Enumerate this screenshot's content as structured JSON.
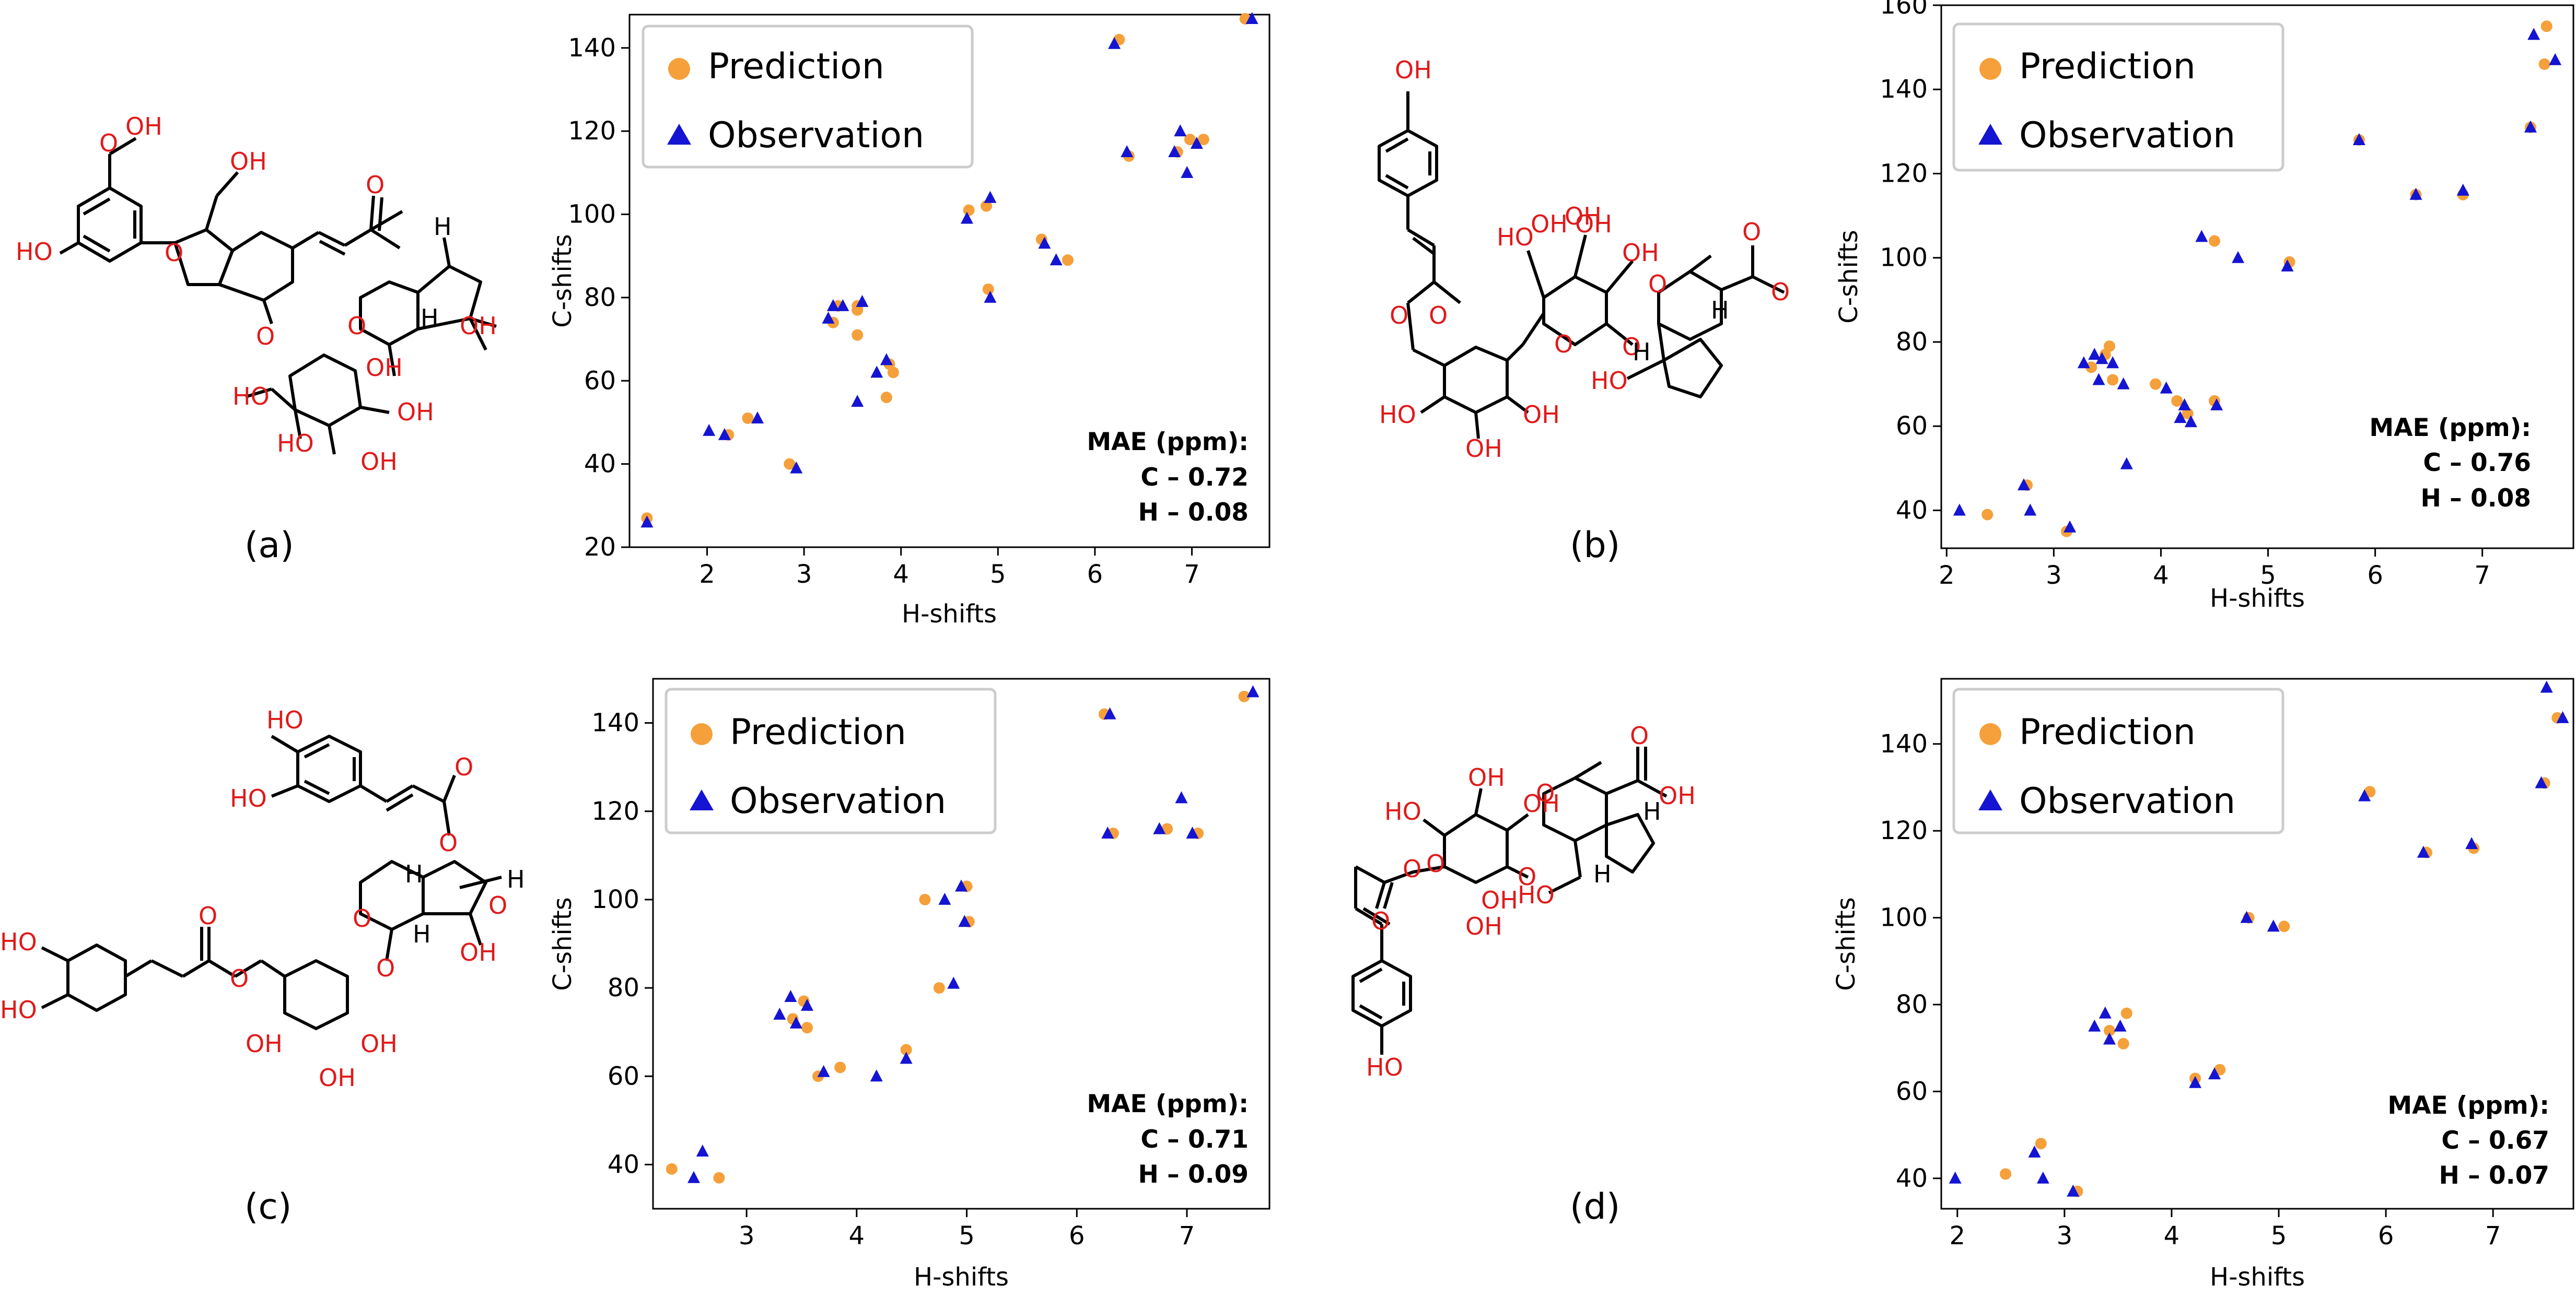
{
  "legend": {
    "prediction": "Prediction",
    "observation": "Observation"
  },
  "colors": {
    "prediction": "#f5a03a",
    "observation": "#1414d2",
    "frame": "#000000",
    "legend_border": "#cccccc"
  },
  "panels": [
    {
      "id": "a",
      "label": "(a)",
      "atoms": [
        "OH",
        "HO",
        "O",
        "O",
        "OH",
        "O",
        "O",
        "H",
        "H",
        "OH",
        "O",
        "HO",
        "HO",
        "OH",
        "OH",
        "OH"
      ]
    },
    {
      "id": "b",
      "label": "(b)",
      "atoms": [
        "OH",
        "O",
        "O",
        "HO",
        "OH",
        "OH",
        "O",
        "O",
        "O",
        "O",
        "O",
        "H",
        "H",
        "HO",
        "HO",
        "OH",
        "OH",
        "OH",
        "OH"
      ]
    },
    {
      "id": "c",
      "label": "(c)",
      "atoms": [
        "HO",
        "HO",
        "O",
        "O",
        "H",
        "H",
        "O",
        "H",
        "HO",
        "HO",
        "O",
        "O",
        "O",
        "O",
        "OH",
        "OH",
        "OH",
        "OH"
      ]
    },
    {
      "id": "d",
      "label": "(d)",
      "atoms": [
        "HO",
        "OH",
        "O",
        "O",
        "OH",
        "O",
        "O",
        "HO",
        "H",
        "H",
        "HO",
        "OH",
        "OH",
        "O",
        "O",
        "OH"
      ]
    }
  ],
  "chart_data": [
    {
      "type": "scatter",
      "xlabel": "H-shifts",
      "ylabel": "C-shifts",
      "xlim": [
        1.2,
        7.8
      ],
      "ylim": [
        20,
        148
      ],
      "xticks": [
        2,
        3,
        4,
        5,
        6,
        7
      ],
      "yticks": [
        20,
        40,
        60,
        80,
        100,
        120,
        140
      ],
      "annotation": [
        "MAE (ppm):",
        "C – 0.72",
        "H – 0.08"
      ],
      "series": [
        {
          "name": "Prediction",
          "marker": "circle",
          "x": [
            1.38,
            2.22,
            2.42,
            2.85,
            3.3,
            3.35,
            3.55,
            3.55,
            3.55,
            3.85,
            3.88,
            3.92,
            4.7,
            4.88,
            4.9,
            5.45,
            5.72,
            6.25,
            6.35,
            6.85,
            6.98,
            7.12,
            7.55
          ],
          "y": [
            27,
            47,
            51,
            40,
            74,
            78,
            78,
            77,
            71,
            56,
            64,
            62,
            101,
            102,
            82,
            94,
            89,
            142,
            114,
            115,
            118,
            118,
            147
          ]
        },
        {
          "name": "Observation",
          "marker": "triangle",
          "x": [
            1.38,
            2.02,
            2.18,
            2.52,
            2.92,
            3.25,
            3.3,
            3.4,
            3.55,
            3.6,
            3.75,
            3.85,
            4.68,
            4.92,
            4.92,
            5.48,
            5.6,
            6.2,
            6.33,
            6.82,
            6.88,
            6.95,
            7.05,
            7.62
          ],
          "y": [
            26,
            48,
            47,
            51,
            39,
            75,
            78,
            78,
            55,
            79,
            62,
            65,
            99,
            104,
            80,
            93,
            89,
            141,
            115,
            115,
            120,
            110,
            117,
            147
          ]
        }
      ]
    },
    {
      "type": "scatter",
      "xlabel": "H-shifts",
      "ylabel": "C-shifts",
      "xlim": [
        1.95,
        7.85
      ],
      "ylim": [
        31,
        160
      ],
      "xticks": [
        2,
        3,
        4,
        5,
        6,
        7
      ],
      "yticks": [
        40,
        60,
        80,
        100,
        120,
        140,
        160
      ],
      "annotation": [
        "MAE (ppm):",
        "C – 0.76",
        "H – 0.08"
      ],
      "series": [
        {
          "name": "Prediction",
          "marker": "circle",
          "x": [
            2.38,
            2.75,
            3.12,
            3.35,
            3.48,
            3.52,
            3.55,
            3.95,
            4.15,
            4.25,
            4.5,
            4.5,
            5.2,
            5.85,
            6.38,
            6.82,
            7.45,
            7.58,
            7.6
          ],
          "y": [
            39,
            46,
            35,
            74,
            77,
            79,
            71,
            70,
            66,
            63,
            66,
            104,
            99,
            128,
            115,
            115,
            131,
            146,
            155
          ]
        },
        {
          "name": "Observation",
          "marker": "triangle",
          "x": [
            2.12,
            2.78,
            3.15,
            3.28,
            3.38,
            3.42,
            3.45,
            3.55,
            3.68,
            4.05,
            4.18,
            4.22,
            4.28,
            4.38,
            4.52,
            4.72,
            5.18,
            5.85,
            6.38,
            6.82,
            7.45,
            7.48,
            7.68
          ],
          "y": [
            40,
            40,
            36,
            75,
            77,
            71,
            76,
            75,
            51,
            69,
            62,
            65,
            61,
            105,
            65,
            100,
            98,
            128,
            115,
            116,
            131,
            153,
            147
          ]
        },
        {
          "name": "Observation",
          "marker": "triangle",
          "x": [
            2.72,
            3.65
          ],
          "y": [
            46,
            70
          ]
        }
      ]
    },
    {
      "type": "scatter",
      "xlabel": "H-shifts",
      "ylabel": "C-shifts",
      "xlim": [
        2.15,
        7.75
      ],
      "ylim": [
        30,
        150
      ],
      "xticks": [
        3,
        4,
        5,
        6,
        7
      ],
      "yticks": [
        40,
        60,
        80,
        100,
        120,
        140
      ],
      "annotation": [
        "MAE (ppm):",
        "C – 0.71",
        "H – 0.09"
      ],
      "series": [
        {
          "name": "Prediction",
          "marker": "circle",
          "x": [
            2.32,
            2.75,
            3.42,
            3.52,
            3.55,
            3.65,
            3.85,
            4.45,
            4.62,
            4.75,
            5.0,
            5.02,
            6.25,
            6.33,
            6.82,
            7.1,
            7.52
          ],
          "y": [
            39,
            37,
            73,
            77,
            71,
            60,
            62,
            66,
            100,
            80,
            103,
            95,
            142,
            115,
            116,
            115,
            146
          ]
        },
        {
          "name": "Observation",
          "marker": "triangle",
          "x": [
            2.52,
            2.6,
            3.3,
            3.4,
            3.45,
            3.55,
            3.7,
            4.18,
            4.45,
            4.8,
            4.88,
            4.95,
            4.98,
            6.3,
            6.28,
            6.75,
            6.95,
            7.05,
            7.6
          ],
          "y": [
            37,
            43,
            74,
            78,
            72,
            76,
            61,
            60,
            64,
            100,
            81,
            103,
            95,
            142,
            115,
            116,
            123,
            115,
            147
          ]
        }
      ]
    },
    {
      "type": "scatter",
      "xlabel": "H-shifts",
      "ylabel": "C-shifts",
      "xlim": [
        1.85,
        7.75
      ],
      "ylim": [
        33,
        155
      ],
      "xticks": [
        2,
        3,
        4,
        5,
        6,
        7
      ],
      "yticks": [
        40,
        60,
        80,
        100,
        120,
        140
      ],
      "annotation": [
        "MAE (ppm):",
        "C – 0.67",
        "H – 0.07"
      ],
      "series": [
        {
          "name": "Prediction",
          "marker": "circle",
          "x": [
            2.45,
            2.78,
            3.12,
            3.42,
            3.55,
            3.58,
            4.22,
            4.45,
            4.72,
            5.05,
            5.85,
            6.38,
            6.82,
            7.48,
            7.6
          ],
          "y": [
            41,
            48,
            37,
            74,
            71,
            78,
            63,
            65,
            100,
            98,
            129,
            115,
            116,
            131,
            146
          ]
        },
        {
          "name": "Observation",
          "marker": "triangle",
          "x": [
            1.98,
            2.72,
            2.8,
            3.08,
            3.28,
            3.38,
            3.42,
            3.52,
            4.22,
            4.4,
            4.7,
            4.95,
            5.8,
            6.35,
            6.8,
            7.45,
            7.5,
            7.65
          ],
          "y": [
            40,
            46,
            40,
            37,
            75,
            78,
            72,
            75,
            62,
            64,
            100,
            98,
            128,
            115,
            117,
            131,
            153,
            146
          ]
        }
      ]
    }
  ]
}
